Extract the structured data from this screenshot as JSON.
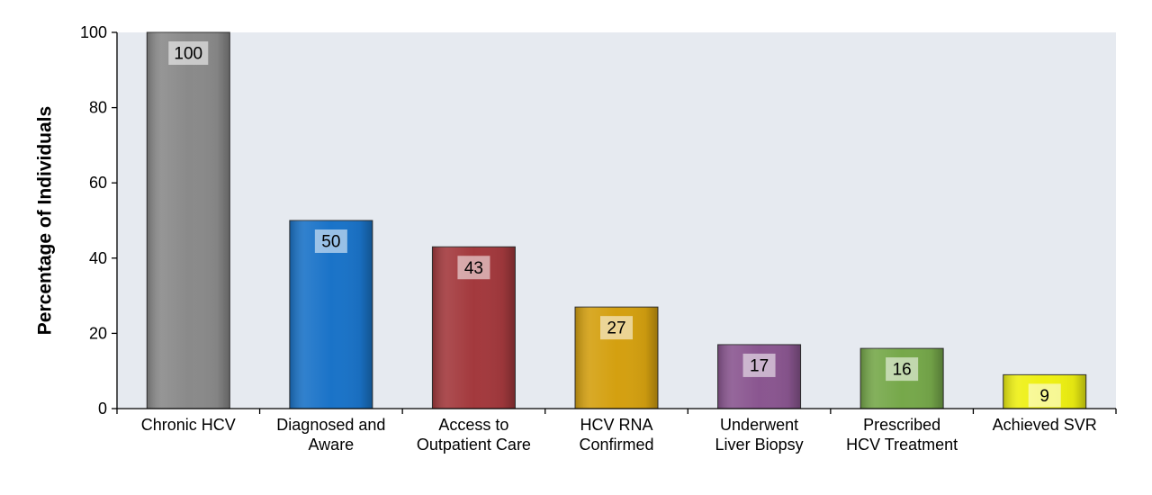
{
  "chart_data": {
    "type": "bar",
    "title": "",
    "xlabel": "",
    "ylabel": "Percentage of Individuals",
    "ylim": [
      0,
      100
    ],
    "yticks": [
      0,
      20,
      40,
      60,
      80,
      100
    ],
    "grid": false,
    "legend": "none",
    "categories": [
      [
        "Chronic HCV"
      ],
      [
        "Diagnosed and",
        "Aware"
      ],
      [
        "Access to",
        "Outpatient Care"
      ],
      [
        "HCV RNA",
        "Confirmed"
      ],
      [
        "Underwent",
        "Liver Biopsy"
      ],
      [
        "Prescribed",
        "HCV Treatment"
      ],
      [
        "Achieved SVR"
      ]
    ],
    "values": [
      100,
      50,
      43,
      27,
      17,
      16,
      9
    ],
    "colors": [
      "#8a8a8a",
      "#1a73c8",
      "#a3393d",
      "#d4a010",
      "#8a5690",
      "#76a84a",
      "#eef012"
    ],
    "plot_background": "#e6eaf0"
  }
}
